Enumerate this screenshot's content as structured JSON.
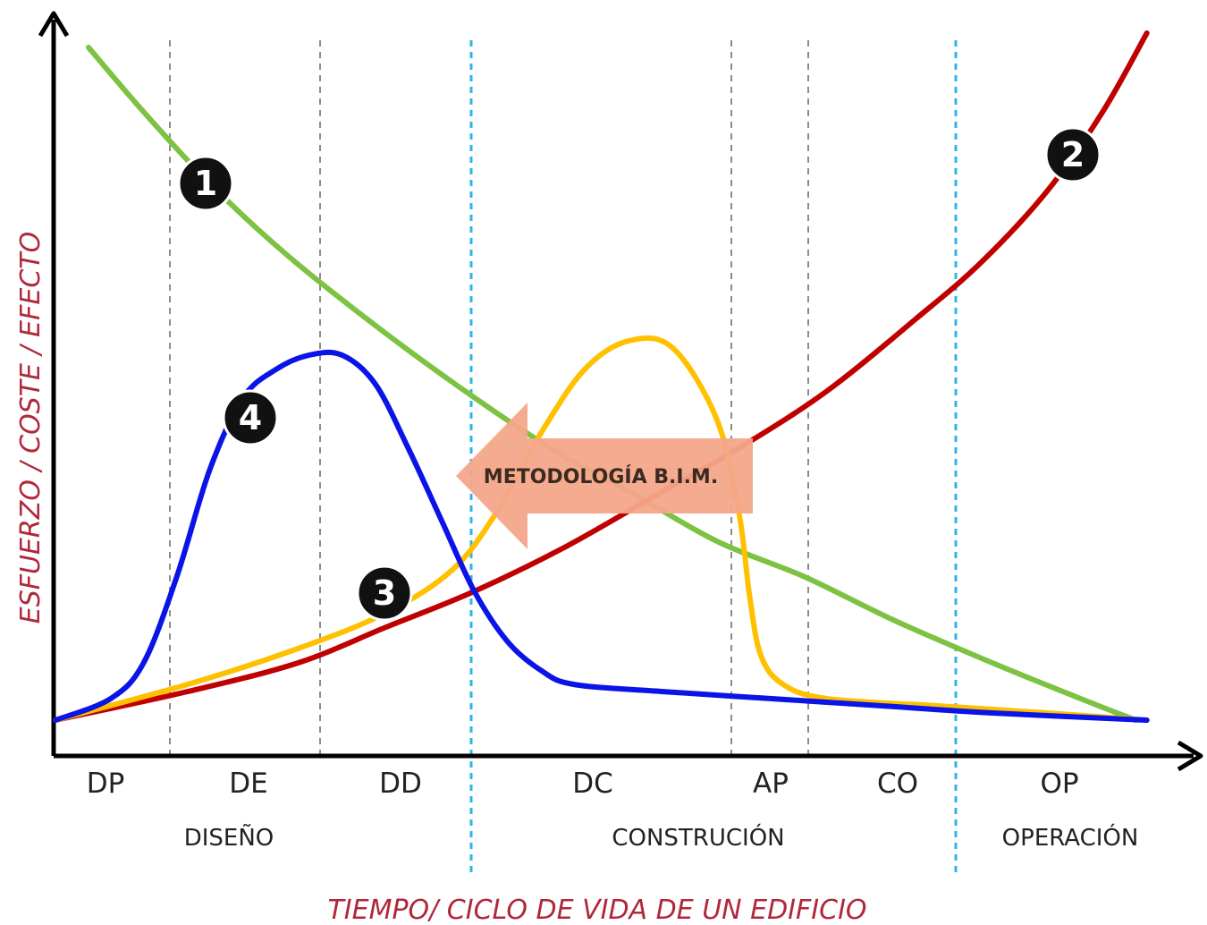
{
  "chart_data": {
    "type": "line",
    "ylabel": "ESFUERZO / COSTE / EFECTO",
    "xlabel": "TIEMPO/ CICLO DE VIDA DE UN EDIFICIO",
    "x_range": [
      0,
      1
    ],
    "y_range": [
      0,
      1
    ],
    "phases": [
      "DP",
      "DE",
      "DD",
      "DC",
      "AP",
      "CO",
      "OP"
    ],
    "stages": [
      {
        "label": "DISEÑO",
        "phases": [
          "DP",
          "DE",
          "DD"
        ]
      },
      {
        "label": "CONSTRUCIÓN",
        "phases": [
          "DC",
          "AP",
          "CO"
        ]
      },
      {
        "label": "OPERACIÓN",
        "phases": [
          "OP"
        ]
      }
    ],
    "annotation": "METODOLOGÍA B.I.M.",
    "series": [
      {
        "marker": "1",
        "color": "#7dc242",
        "x": [
          0.03,
          0.08,
          0.14,
          0.21,
          0.3,
          0.39,
          0.46,
          0.52,
          0.6,
          0.68,
          0.76,
          0.85,
          0.93,
          0.98
        ],
        "y": [
          0.99,
          0.9,
          0.8,
          0.7,
          0.59,
          0.49,
          0.42,
          0.37,
          0.3,
          0.25,
          0.19,
          0.13,
          0.08,
          0.05
        ]
      },
      {
        "marker": "2",
        "color": "#c00000",
        "x": [
          0.0,
          0.12,
          0.22,
          0.3,
          0.38,
          0.46,
          0.54,
          0.62,
          0.7,
          0.78,
          0.84,
          0.9,
          0.95,
          0.99
        ],
        "y": [
          0.05,
          0.09,
          0.13,
          0.18,
          0.23,
          0.29,
          0.36,
          0.43,
          0.51,
          0.61,
          0.69,
          0.79,
          0.9,
          1.01
        ]
      },
      {
        "marker": "3",
        "color": "#ffc000",
        "x": [
          0.0,
          0.12,
          0.22,
          0.3,
          0.36,
          0.4,
          0.44,
          0.48,
          0.52,
          0.56,
          0.6,
          0.62,
          0.63,
          0.64,
          0.66,
          0.7,
          0.8,
          0.9,
          0.99
        ],
        "y": [
          0.05,
          0.1,
          0.15,
          0.2,
          0.26,
          0.34,
          0.45,
          0.54,
          0.58,
          0.57,
          0.47,
          0.34,
          0.22,
          0.14,
          0.1,
          0.08,
          0.07,
          0.06,
          0.05
        ]
      },
      {
        "marker": "4",
        "color": "#0a14e6",
        "x": [
          0.0,
          0.05,
          0.08,
          0.11,
          0.14,
          0.17,
          0.2,
          0.23,
          0.26,
          0.29,
          0.32,
          0.35,
          0.38,
          0.41,
          0.44,
          0.47,
          0.55,
          0.65,
          0.75,
          0.85,
          0.99
        ],
        "y": [
          0.05,
          0.08,
          0.13,
          0.25,
          0.4,
          0.5,
          0.54,
          0.56,
          0.56,
          0.52,
          0.43,
          0.33,
          0.23,
          0.16,
          0.12,
          0.1,
          0.09,
          0.08,
          0.07,
          0.06,
          0.05
        ]
      }
    ]
  }
}
